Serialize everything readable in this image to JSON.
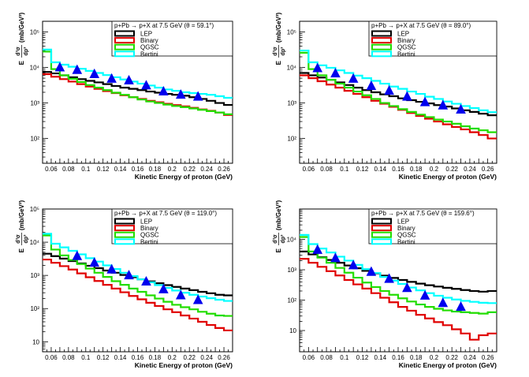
{
  "figure": {
    "x_axis_title": "Kinetic Energy of proton (GeV)",
    "y_axis_title": {
      "e": "E",
      "num": "d³σ",
      "den": "dp³",
      "unit": "(mb/GeV²)"
    }
  },
  "colors": {
    "LEP": "#000000",
    "Binary": "#e00000",
    "QGSC": "#22dd00",
    "Bertini": "#00ffff",
    "data": "#0000ee"
  },
  "chart_data": [
    {
      "type": "line",
      "title": "p+Pb → p+X at 7.5 GeV (θ =  59.1°)",
      "xlabel": "Kinetic Energy of proton (GeV)",
      "ylabel": "E d³σ/dp³ (mb/GeV²)",
      "xlim": [
        0.05,
        0.27
      ],
      "ylim": [
        20,
        200000
      ],
      "yscale": "log",
      "x_ticks": [
        "0.06",
        "0.08",
        "0.1",
        "0.12",
        "0.14",
        "0.16",
        "0.18",
        "0.2",
        "0.22",
        "0.24",
        "0.26"
      ],
      "y_ticks": [
        {
          "value": 100,
          "label": "10²"
        },
        {
          "value": 1000,
          "label": "10³"
        },
        {
          "value": 10000,
          "label": "10⁴"
        },
        {
          "value": 100000,
          "label": "10⁵"
        }
      ],
      "legend": [
        "LEP",
        "Binary",
        "QGSC",
        "Bertini"
      ],
      "legend_position": "top-right",
      "bin_edges": [
        0.05,
        0.06,
        0.07,
        0.08,
        0.09,
        0.1,
        0.11,
        0.12,
        0.13,
        0.14,
        0.15,
        0.16,
        0.17,
        0.18,
        0.19,
        0.2,
        0.21,
        0.22,
        0.23,
        0.24,
        0.25,
        0.26,
        0.27
      ],
      "series": [
        {
          "name": "LEP",
          "values": [
            7500,
            6800,
            6000,
            5300,
            4700,
            4200,
            3800,
            3400,
            3000,
            2700,
            2500,
            2300,
            2100,
            1950,
            1800,
            1700,
            1600,
            1450,
            1300,
            1150,
            1000,
            880
          ]
        },
        {
          "name": "Binary",
          "values": [
            6500,
            5500,
            4700,
            4000,
            3400,
            2900,
            2500,
            2150,
            1900,
            1650,
            1450,
            1300,
            1150,
            1050,
            950,
            870,
            800,
            730,
            660,
            600,
            540,
            460
          ]
        },
        {
          "name": "QGSC",
          "values": [
            28000,
            9000,
            6000,
            4800,
            3900,
            3200,
            2700,
            2300,
            1950,
            1700,
            1450,
            1250,
            1100,
            1000,
            900,
            820,
            760,
            700,
            640,
            590,
            540,
            480
          ]
        },
        {
          "name": "Bertini",
          "values": [
            32000,
            14000,
            12000,
            10500,
            9200,
            8000,
            7000,
            6100,
            5300,
            4600,
            4000,
            3500,
            3100,
            2700,
            2400,
            2200,
            2000,
            1900,
            1800,
            1700,
            1550,
            1400
          ]
        }
      ],
      "points": {
        "x": [
          0.07,
          0.09,
          0.11,
          0.13,
          0.15,
          0.17,
          0.19,
          0.21,
          0.23
        ],
        "y": [
          10000,
          8500,
          6500,
          4800,
          4300,
          3100,
          2100,
          1700,
          1500
        ]
      }
    },
    {
      "type": "line",
      "title": "p+Pb → p+X at 7.5 GeV (θ =  89.0°)",
      "xlabel": "Kinetic Energy of proton (GeV)",
      "ylabel": "E d³σ/dp³ (mb/GeV²)",
      "xlim": [
        0.05,
        0.27
      ],
      "ylim": [
        20,
        200000
      ],
      "yscale": "log",
      "x_ticks": [
        "0.06",
        "0.08",
        "0.1",
        "0.12",
        "0.14",
        "0.16",
        "0.18",
        "0.2",
        "0.22",
        "0.24",
        "0.26"
      ],
      "y_ticks": [
        {
          "value": 100,
          "label": "10²"
        },
        {
          "value": 1000,
          "label": "10³"
        },
        {
          "value": 10000,
          "label": "10⁴"
        },
        {
          "value": 100000,
          "label": "10⁵"
        }
      ],
      "legend": [
        "LEP",
        "Binary",
        "QGSC",
        "Bertini"
      ],
      "legend_position": "top-right",
      "bin_edges": [
        0.05,
        0.06,
        0.07,
        0.08,
        0.09,
        0.1,
        0.11,
        0.12,
        0.13,
        0.14,
        0.15,
        0.16,
        0.17,
        0.18,
        0.19,
        0.2,
        0.21,
        0.22,
        0.23,
        0.24,
        0.25,
        0.26,
        0.27
      ],
      "series": [
        {
          "name": "LEP",
          "values": [
            7000,
            6000,
            5200,
            4500,
            3800,
            3200,
            2700,
            2300,
            2000,
            1750,
            1550,
            1350,
            1200,
            1080,
            970,
            870,
            790,
            700,
            620,
            560,
            500,
            450
          ]
        },
        {
          "name": "Binary",
          "values": [
            6000,
            5000,
            4100,
            3300,
            2700,
            2200,
            1800,
            1450,
            1150,
            950,
            780,
            640,
            520,
            430,
            360,
            300,
            250,
            210,
            180,
            150,
            125,
            100
          ]
        },
        {
          "name": "QGSC",
          "values": [
            26000,
            9000,
            6000,
            4500,
            3500,
            2700,
            2100,
            1650,
            1300,
            1000,
            820,
            670,
            560,
            470,
            400,
            340,
            300,
            260,
            220,
            190,
            170,
            150
          ]
        },
        {
          "name": "Bertini",
          "values": [
            30000,
            14000,
            11500,
            9800,
            8300,
            7000,
            5900,
            5000,
            4200,
            3500,
            2900,
            2500,
            2100,
            1800,
            1500,
            1300,
            1100,
            950,
            820,
            720,
            620,
            550
          ]
        }
      ],
      "points": {
        "x": [
          0.07,
          0.09,
          0.11,
          0.13,
          0.15,
          0.17,
          0.19,
          0.21,
          0.23
        ],
        "y": [
          9500,
          6800,
          4800,
          3000,
          2200,
          1500,
          1050,
          850,
          650
        ]
      }
    },
    {
      "type": "line",
      "title": "p+Pb → p+X at 7.5 GeV (θ = 119.0°)",
      "xlabel": "Kinetic Energy of proton (GeV)",
      "ylabel": "E d³σ/dp³ (mb/GeV²)",
      "xlim": [
        0.05,
        0.27
      ],
      "ylim": [
        5,
        100000
      ],
      "yscale": "log",
      "x_ticks": [
        "0.06",
        "0.08",
        "0.1",
        "0.12",
        "0.14",
        "0.16",
        "0.18",
        "0.2",
        "0.22",
        "0.24",
        "0.26"
      ],
      "y_ticks": [
        {
          "value": 10,
          "label": "10"
        },
        {
          "value": 100,
          "label": "10²"
        },
        {
          "value": 1000,
          "label": "10³"
        },
        {
          "value": 10000,
          "label": "10⁴"
        },
        {
          "value": 100000,
          "label": "10⁵"
        }
      ],
      "legend": [
        "LEP",
        "Binary",
        "QGSC",
        "Bertini"
      ],
      "legend_position": "top-right",
      "bin_edges": [
        0.05,
        0.06,
        0.07,
        0.08,
        0.09,
        0.1,
        0.11,
        0.12,
        0.13,
        0.14,
        0.15,
        0.16,
        0.17,
        0.18,
        0.19,
        0.2,
        0.21,
        0.22,
        0.23,
        0.24,
        0.25,
        0.26,
        0.27
      ],
      "series": [
        {
          "name": "LEP",
          "values": [
            4500,
            3800,
            3200,
            2700,
            2300,
            1950,
            1650,
            1400,
            1200,
            1030,
            880,
            760,
            660,
            580,
            510,
            450,
            400,
            360,
            320,
            290,
            260,
            250
          ]
        },
        {
          "name": "Binary",
          "values": [
            3000,
            2400,
            1900,
            1500,
            1150,
            880,
            680,
            520,
            400,
            310,
            240,
            190,
            150,
            120,
            95,
            78,
            62,
            50,
            40,
            32,
            26,
            22
          ]
        },
        {
          "name": "QGSC",
          "values": [
            16000,
            6000,
            4000,
            2900,
            2200,
            1600,
            1200,
            900,
            670,
            520,
            400,
            320,
            250,
            200,
            160,
            130,
            110,
            95,
            80,
            70,
            62,
            60
          ]
        },
        {
          "name": "Bertini",
          "values": [
            18000,
            9000,
            7000,
            5500,
            4300,
            3300,
            2600,
            2000,
            1550,
            1200,
            950,
            760,
            620,
            510,
            420,
            350,
            300,
            260,
            230,
            205,
            185,
            170
          ]
        }
      ],
      "points": {
        "x": [
          0.09,
          0.11,
          0.13,
          0.15,
          0.17,
          0.19,
          0.21,
          0.23
        ],
        "y": [
          3800,
          2400,
          1500,
          1000,
          650,
          380,
          250,
          180
        ]
      }
    },
    {
      "type": "line",
      "title": "p+Pb → p+X at 7.5 GeV (θ = 159.6°)",
      "xlabel": "Kinetic Energy of proton (GeV)",
      "ylabel": "E d³σ/dp³ (mb/GeV²)",
      "xlim": [
        0.05,
        0.27
      ],
      "ylim": [
        2,
        100000
      ],
      "yscale": "log",
      "x_ticks": [
        "0.06",
        "0.08",
        "0.1",
        "0.12",
        "0.14",
        "0.16",
        "0.18",
        "0.2",
        "0.22",
        "0.24",
        "0.26"
      ],
      "y_ticks": [
        {
          "value": 10,
          "label": "10"
        },
        {
          "value": 100,
          "label": "10²"
        },
        {
          "value": 1000,
          "label": "10³"
        },
        {
          "value": 10000,
          "label": "10⁴"
        }
      ],
      "legend": [
        "LEP",
        "Binary",
        "QGSC",
        "Bertini"
      ],
      "legend_position": "top-right",
      "bin_edges": [
        0.05,
        0.06,
        0.07,
        0.08,
        0.09,
        0.1,
        0.11,
        0.12,
        0.13,
        0.14,
        0.15,
        0.16,
        0.17,
        0.18,
        0.19,
        0.2,
        0.21,
        0.22,
        0.23,
        0.24,
        0.25,
        0.26,
        0.27
      ],
      "series": [
        {
          "name": "LEP",
          "values": [
            4000,
            3200,
            2600,
            2100,
            1700,
            1380,
            1120,
            920,
            760,
            640,
            540,
            460,
            400,
            350,
            310,
            280,
            255,
            235,
            215,
            200,
            190,
            200
          ]
        },
        {
          "name": "Binary",
          "values": [
            2300,
            1700,
            1250,
            900,
            650,
            460,
            330,
            240,
            170,
            120,
            85,
            60,
            45,
            33,
            25,
            19,
            15,
            11,
            8,
            5,
            7,
            8
          ]
        },
        {
          "name": "QGSC",
          "values": [
            12000,
            4000,
            2500,
            1700,
            1150,
            800,
            550,
            380,
            270,
            200,
            150,
            115,
            90,
            72,
            60,
            52,
            46,
            42,
            40,
            38,
            36,
            40
          ]
        },
        {
          "name": "Bertini",
          "values": [
            14000,
            7000,
            5000,
            3700,
            2700,
            2000,
            1450,
            1050,
            780,
            580,
            440,
            340,
            260,
            210,
            170,
            140,
            120,
            105,
            95,
            88,
            82,
            80
          ]
        }
      ],
      "points": {
        "x": [
          0.07,
          0.09,
          0.11,
          0.13,
          0.15,
          0.17,
          0.19,
          0.21,
          0.23
        ],
        "y": [
          4500,
          2400,
          1400,
          850,
          500,
          250,
          140,
          80,
          60
        ]
      }
    }
  ]
}
